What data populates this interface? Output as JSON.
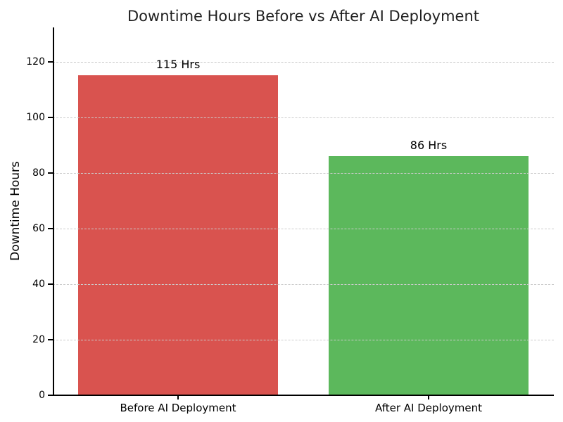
{
  "chart_data": {
    "type": "bar",
    "title": "Downtime Hours Before vs After AI Deployment",
    "xlabel": "",
    "ylabel": "Downtime Hours",
    "categories": [
      "Before AI Deployment",
      "After AI Deployment"
    ],
    "values": [
      115,
      86
    ],
    "bar_labels": [
      "115 Hrs",
      "86 Hrs"
    ],
    "bar_colors": [
      "#d9534f",
      "#5cb85c"
    ],
    "yticks": [
      0,
      20,
      40,
      60,
      80,
      100,
      120
    ],
    "ylim": [
      0,
      132.3
    ],
    "grid": "horizontal-dashed",
    "grid_color": "#cccccc",
    "legend": "none"
  }
}
